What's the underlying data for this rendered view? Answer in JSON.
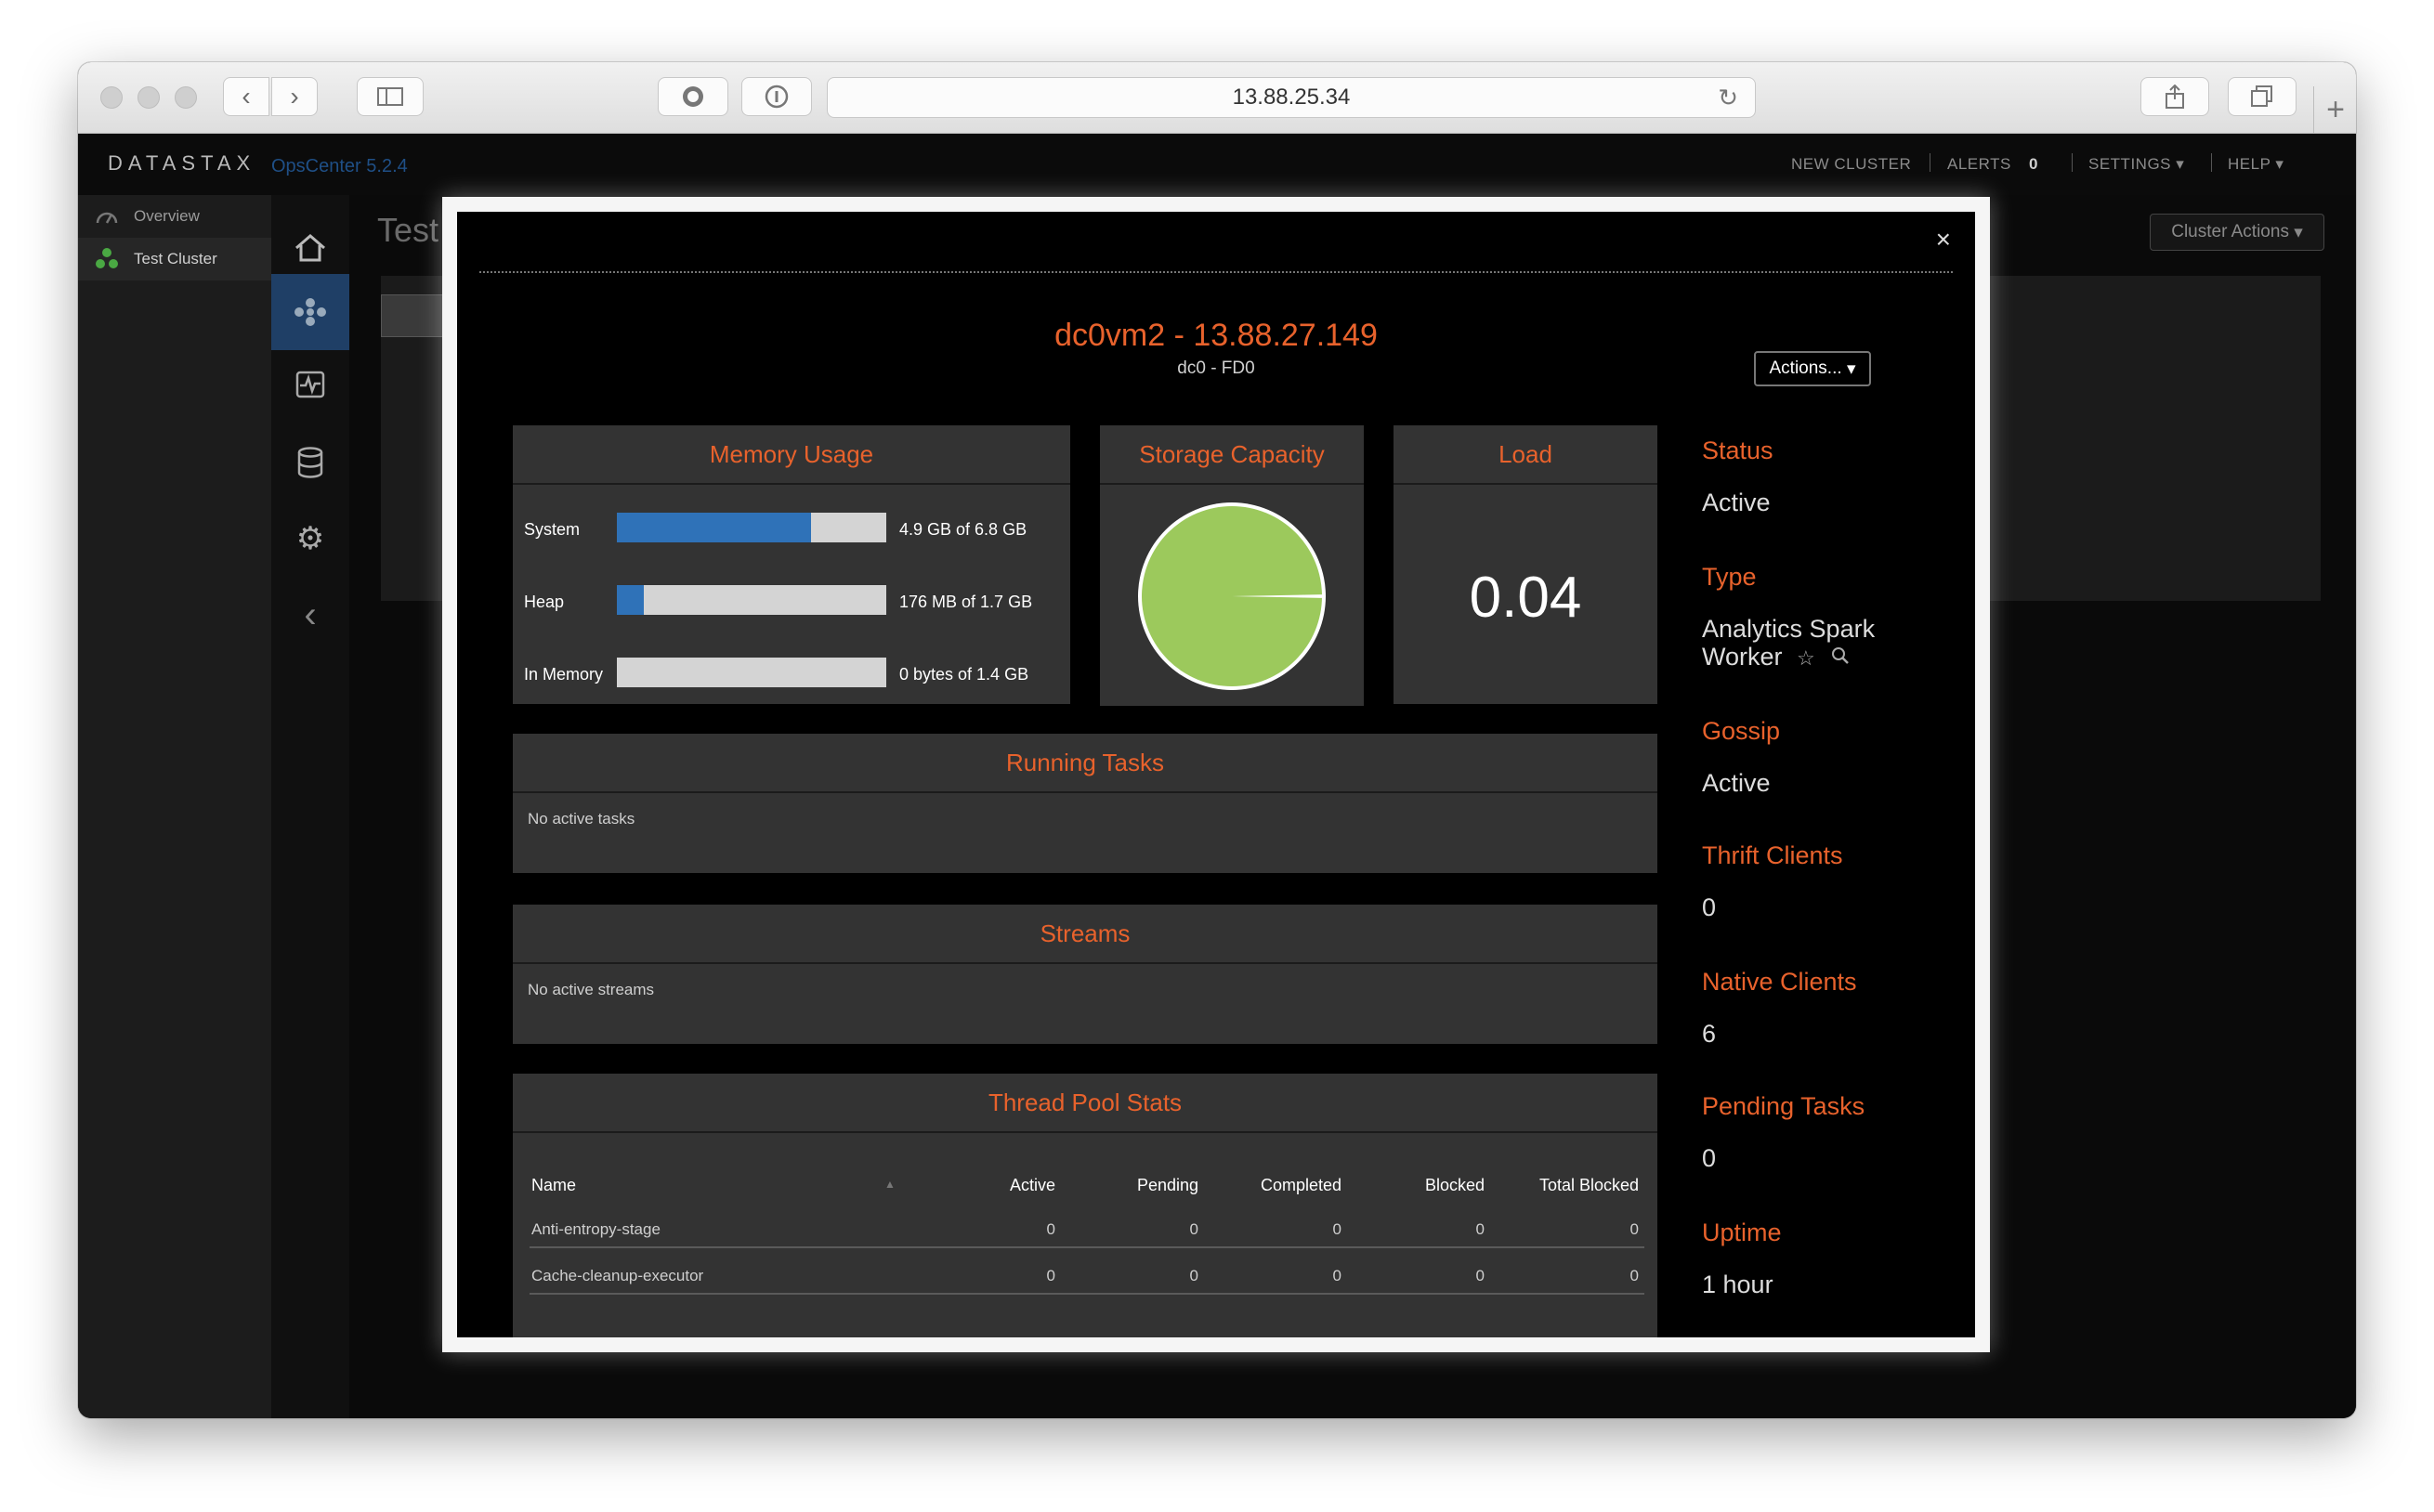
{
  "browser": {
    "url": "13.88.25.34"
  },
  "app": {
    "brand": "DATASTAX",
    "product": "OpsCenter 5.2.4",
    "nav": {
      "new_cluster": "NEW CLUSTER",
      "alerts": "ALERTS",
      "alerts_count": "0",
      "settings": "SETTINGS",
      "help": "HELP"
    },
    "sidebar": [
      {
        "label": "Overview",
        "icon": "gauge-icon"
      },
      {
        "label": "Test Cluster",
        "icon": "cluster-icon"
      }
    ],
    "page_title_partial": "Test",
    "cluster_actions": "Cluster Actions"
  },
  "modal": {
    "title": "dc0vm2 - 13.88.27.149",
    "subtitle": "dc0 - FD0",
    "actions_label": "Actions...",
    "close": "×",
    "memory": {
      "title": "Memory Usage",
      "rows": [
        {
          "label": "System",
          "value": "4.9 GB of 6.8 GB",
          "fraction": 0.72
        },
        {
          "label": "Heap",
          "value": "176 MB of 1.7 GB",
          "fraction": 0.1
        },
        {
          "label": "In Memory",
          "value": "0 bytes of 1.4 GB",
          "fraction": 0.0
        }
      ]
    },
    "storage": {
      "title": "Storage Capacity",
      "used_fraction": 0.006
    },
    "load": {
      "title": "Load",
      "value": "0.04"
    },
    "running_tasks": {
      "title": "Running Tasks",
      "empty": "No active tasks"
    },
    "streams": {
      "title": "Streams",
      "empty": "No active streams"
    },
    "thread_pool": {
      "title": "Thread Pool Stats",
      "columns": [
        "Name",
        "Active",
        "Pending",
        "Completed",
        "Blocked",
        "Total Blocked"
      ],
      "rows": [
        {
          "name": "Anti-entropy-stage",
          "active": "0",
          "pending": "0",
          "completed": "0",
          "blocked": "0",
          "total_blocked": "0"
        },
        {
          "name": "Cache-cleanup-executor",
          "active": "0",
          "pending": "0",
          "completed": "0",
          "blocked": "0",
          "total_blocked": "0"
        }
      ]
    },
    "info": {
      "status_label": "Status",
      "status": "Active",
      "type_label": "Type",
      "type_line1": "Analytics Spark",
      "type_line2": "Worker",
      "gossip_label": "Gossip",
      "gossip": "Active",
      "thrift_label": "Thrift Clients",
      "thrift": "0",
      "native_label": "Native Clients",
      "native": "6",
      "pending_label": "Pending Tasks",
      "pending": "0",
      "uptime_label": "Uptime",
      "uptime": "1 hour"
    },
    "colors": {
      "accent": "#e8622c",
      "bar": "#2f72b8",
      "pie": "#9cc95c"
    }
  }
}
